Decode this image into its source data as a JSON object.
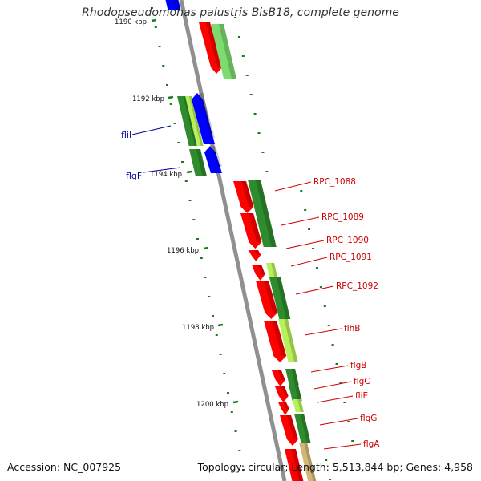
{
  "title": "Rhodopseudomonas palustris BisB18, complete genome",
  "accession": {
    "label": "Accession:",
    "value": "NC_007925"
  },
  "summary": {
    "topology_label": "Topology:",
    "topology": "circular",
    "length_label": "Length:",
    "length": "5,513,844 bp",
    "genes_label": "Genes:",
    "genes": "4,958"
  },
  "colors": {
    "backbone": "#909090",
    "forward_cds": "#2e8b2e",
    "forward_cds_light": "#b7f05a",
    "reverse_cds": "#ff0000",
    "other_feature": "#0000ff",
    "tick": "#1a7a1a",
    "gene_label": "#cc0000",
    "left_label": "#000099",
    "pale_feature": "#d3b777"
  },
  "ruler": [
    {
      "label": "1190 kbp"
    },
    {
      "label": "1192 kbp"
    },
    {
      "label": "1194 kbp"
    },
    {
      "label": "1196 kbp"
    },
    {
      "label": "1198 kbp"
    },
    {
      "label": "1200 kbp"
    }
  ],
  "left_labels": [
    {
      "text": "fliI"
    },
    {
      "text": "flgF"
    }
  ],
  "gene_labels": [
    {
      "text": "RPC_1088"
    },
    {
      "text": "RPC_1089"
    },
    {
      "text": "RPC_1090"
    },
    {
      "text": "RPC_1091"
    },
    {
      "text": "RPC_1092"
    },
    {
      "text": "flhB"
    },
    {
      "text": "flgB"
    },
    {
      "text": "flgC"
    },
    {
      "text": "fliE"
    },
    {
      "text": "flgG"
    },
    {
      "text": "flgA"
    }
  ]
}
